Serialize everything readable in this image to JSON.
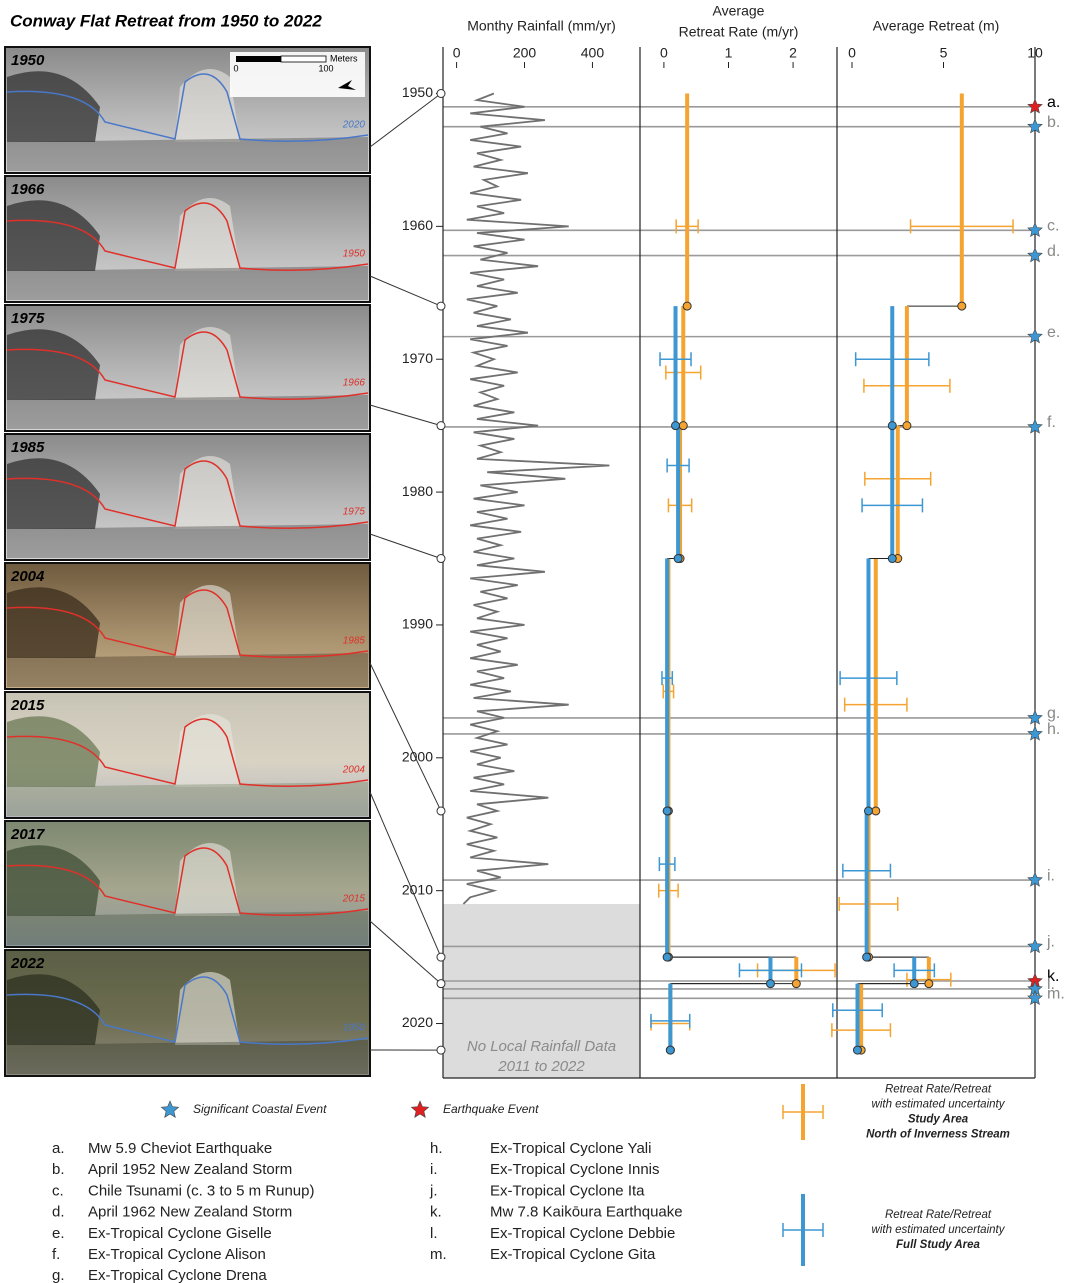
{
  "title": "Conway Flat Retreat from 1950 to 2022",
  "photos": [
    {
      "year": 1950,
      "shoreline_label": "2020",
      "shoreline_color": "#4a78c8",
      "tone": "gray"
    },
    {
      "year": 1966,
      "shoreline_label": "1950",
      "shoreline_color": "#e0302a",
      "tone": "gray"
    },
    {
      "year": 1975,
      "shoreline_label": "1966",
      "shoreline_color": "#e0302a",
      "tone": "gray"
    },
    {
      "year": 1985,
      "shoreline_label": "1975",
      "shoreline_color": "#e0302a",
      "tone": "gray"
    },
    {
      "year": 2004,
      "shoreline_label": "1985",
      "shoreline_color": "#e0302a",
      "tone": "brown"
    },
    {
      "year": 2015,
      "shoreline_label": "2004",
      "shoreline_color": "#e0302a",
      "tone": "light"
    },
    {
      "year": 2017,
      "shoreline_label": "2015",
      "shoreline_color": "#e0302a",
      "tone": "green"
    },
    {
      "year": 2022,
      "shoreline_label": "1950",
      "shoreline_color": "#4a78c8",
      "tone": "dark"
    }
  ],
  "scale_bar": {
    "label": "Meters",
    "ticks": [
      0,
      100
    ]
  },
  "chart_data": [
    {
      "type": "line",
      "xlabel": [
        "Monthy Rainfall (mm/yr)"
      ],
      "color": "#707070",
      "xlim": [
        -40,
        540
      ],
      "xticks": [
        0,
        200,
        400
      ],
      "ylim": [
        1946.5,
        2024.1
      ],
      "yticks": [
        1950,
        1960,
        1970,
        1980,
        1990,
        2000,
        2010,
        2020
      ],
      "inverted": true,
      "years": [
        1950,
        1950.5,
        1951,
        1951.5,
        1952,
        1952.5,
        1953,
        1953.5,
        1954,
        1954.5,
        1955,
        1955.5,
        1956,
        1956.5,
        1957,
        1957.5,
        1958,
        1958.5,
        1959,
        1959.5,
        1960,
        1960.5,
        1961,
        1961.5,
        1962,
        1962.5,
        1963,
        1963.5,
        1964,
        1964.5,
        1965,
        1965.5,
        1966,
        1966.5,
        1967,
        1967.5,
        1968,
        1968.5,
        1969,
        1969.5,
        1970,
        1970.5,
        1971,
        1971.5,
        1972,
        1972.5,
        1973,
        1973.5,
        1974,
        1974.5,
        1975,
        1975.5,
        1976,
        1976.5,
        1977,
        1977.5,
        1978,
        1978.5,
        1979,
        1979.5,
        1980,
        1980.5,
        1981,
        1981.5,
        1982,
        1982.5,
        1983,
        1983.5,
        1984,
        1984.5,
        1985,
        1985.5,
        1986,
        1986.5,
        1987,
        1987.5,
        1988,
        1988.5,
        1989,
        1989.5,
        1990,
        1990.5,
        1991,
        1991.5,
        1992,
        1992.5,
        1993,
        1993.5,
        1994,
        1994.5,
        1995,
        1995.5,
        1996,
        1996.5,
        1997,
        1997.5,
        1998,
        1998.5,
        1999,
        1999.5,
        2000,
        2000.5,
        2001,
        2001.5,
        2002,
        2002.5,
        2003,
        2003.5,
        2004,
        2004.5,
        2005,
        2005.5,
        2006,
        2006.5,
        2007,
        2007.5,
        2008,
        2008.5,
        2009,
        2009.5,
        2010,
        2010.5,
        2011
      ],
      "values": [
        110,
        60,
        200,
        40,
        260,
        70,
        150,
        40,
        190,
        60,
        130,
        50,
        210,
        80,
        120,
        40,
        190,
        60,
        140,
        30,
        330,
        60,
        200,
        50,
        150,
        70,
        240,
        40,
        140,
        60,
        180,
        30,
        120,
        50,
        160,
        60,
        210,
        40,
        150,
        50,
        110,
        60,
        180,
        40,
        140,
        70,
        120,
        50,
        170,
        60,
        240,
        50,
        170,
        70,
        130,
        60,
        450,
        90,
        320,
        70,
        180,
        50,
        200,
        60,
        150,
        40,
        190,
        60,
        130,
        50,
        170,
        60,
        260,
        40,
        180,
        70,
        150,
        50,
        120,
        60,
        200,
        40,
        150,
        60,
        130,
        40,
        180,
        60,
        140,
        40,
        160,
        50,
        330,
        60,
        140,
        40,
        120,
        60,
        150,
        40,
        130,
        60,
        170,
        50,
        140,
        40,
        270,
        60,
        120,
        30,
        100,
        40,
        120,
        30,
        110,
        40,
        270,
        60,
        130,
        30,
        110,
        40,
        20
      ],
      "no_data": {
        "start": 2011,
        "text": [
          "No Local Rainfall Data",
          "2011 to 2022"
        ]
      }
    },
    {
      "type": "step",
      "xlabel": [
        "Average",
        "Retreat Rate (m/yr)"
      ],
      "xlim": [
        -0.37,
        2.68
      ],
      "xticks": [
        0,
        1,
        2
      ],
      "ylim": [
        1946.5,
        2024.1
      ],
      "inverted": true,
      "series": [
        {
          "color": "#f5a431",
          "starts": [
            1950,
            1966,
            1975,
            1985,
            2004,
            2015,
            2017
          ],
          "ends": [
            1966,
            1975,
            1985,
            2004,
            2015,
            2017,
            2022
          ],
          "values": [
            0.36,
            0.3,
            0.25,
            0.07,
            0.07,
            2.05,
            0.1
          ],
          "err_at": [
            1960,
            1971,
            1981,
            1995,
            2010,
            2016,
            2020
          ],
          "errors": [
            0.17,
            0.27,
            0.18,
            0.08,
            0.15,
            0.6,
            0.3
          ]
        },
        {
          "color": "#3d97d3",
          "starts": [
            1966,
            1975,
            1985,
            2004,
            2015,
            2017
          ],
          "ends": [
            1975,
            1985,
            2004,
            2015,
            2017,
            2022
          ],
          "values": [
            0.18,
            0.22,
            0.05,
            0.05,
            1.65,
            0.1
          ],
          "err_at": [
            1970,
            1978,
            1994,
            2008,
            2016,
            2019.8
          ],
          "errors": [
            0.24,
            0.17,
            0.08,
            0.12,
            0.48,
            0.3
          ]
        }
      ]
    },
    {
      "type": "step",
      "xlabel": [
        "Average Retreat (m)"
      ],
      "xlim": [
        -0.82,
        10
      ],
      "xticks": [
        0,
        5,
        10
      ],
      "ylim": [
        1946.5,
        2024.1
      ],
      "inverted": true,
      "series": [
        {
          "color": "#f5a431",
          "starts": [
            1950,
            1966,
            1975,
            1985,
            2004,
            2015,
            2017
          ],
          "ends": [
            1966,
            1975,
            1985,
            2004,
            2015,
            2017,
            2022
          ],
          "values": [
            6.0,
            3.0,
            2.5,
            1.3,
            0.9,
            4.2,
            0.5
          ],
          "err_at": [
            1960,
            1972,
            1979,
            1996,
            2011,
            2016.7,
            2020.5
          ],
          "errors": [
            2.8,
            2.35,
            1.8,
            1.7,
            1.6,
            1.2,
            1.6
          ]
        },
        {
          "color": "#3d97d3",
          "starts": [
            1966,
            1975,
            1985,
            2004,
            2015,
            2017
          ],
          "ends": [
            1975,
            1985,
            2004,
            2015,
            2017,
            2022
          ],
          "values": [
            2.2,
            2.2,
            0.9,
            0.8,
            3.4,
            0.3
          ],
          "err_at": [
            1970,
            1981,
            1994,
            2008.5,
            2016,
            2019
          ],
          "errors": [
            2.0,
            1.65,
            1.55,
            1.3,
            1.1,
            1.35
          ]
        }
      ]
    }
  ],
  "event_types": [
    {
      "kind": "coastal",
      "label": "Significant Coastal Event",
      "color": "#3d97d3"
    },
    {
      "kind": "earthquake",
      "label": "Earthquake Event",
      "color": "#e02020"
    }
  ],
  "events": [
    {
      "letter": "a.",
      "year": 1951.0,
      "kind": "earthquake",
      "description": "Mw 5.9 Cheviot Earthquake"
    },
    {
      "letter": "b.",
      "year": 1952.5,
      "kind": "coastal",
      "description": "April 1952 New Zealand Storm"
    },
    {
      "letter": "c.",
      "year": 1960.3,
      "kind": "coastal",
      "description": "Chile Tsunami (c. 3 to 5 m Runup)"
    },
    {
      "letter": "d.",
      "year": 1962.2,
      "kind": "coastal",
      "description": "April 1962 New Zealand Storm"
    },
    {
      "letter": "e.",
      "year": 1968.3,
      "kind": "coastal",
      "description": "Ex-Tropical Cyclone Giselle"
    },
    {
      "letter": "f.",
      "year": 1975.1,
      "kind": "coastal",
      "description": "Ex-Tropical Cyclone Alison"
    },
    {
      "letter": "g.",
      "year": 1997.0,
      "kind": "coastal",
      "description": "Ex-Tropical Cyclone Drena"
    },
    {
      "letter": "h.",
      "year": 1998.2,
      "kind": "coastal",
      "description": "Ex-Tropical Cyclone Yali"
    },
    {
      "letter": "i.",
      "year": 2009.2,
      "kind": "coastal",
      "description": "Ex-Tropical Cyclone Innis"
    },
    {
      "letter": "j.",
      "year": 2014.2,
      "kind": "coastal",
      "description": "Ex-Tropical Cyclone Ita"
    },
    {
      "letter": "k.",
      "year": 2016.8,
      "kind": "earthquake",
      "description": "Mw 7.8 Kaikōura Earthquake"
    },
    {
      "letter": "l.",
      "year": 2017.4,
      "kind": "coastal",
      "description": "Ex-Tropical Cyclone Debbie"
    },
    {
      "letter": "m.",
      "year": 2018.1,
      "kind": "coastal",
      "description": "Ex-Tropical Cyclone Gita"
    }
  ],
  "legend": [
    {
      "color": "#f5a431",
      "lines": [
        "Retreat Rate/Retreat",
        "with estimated uncertainty"
      ],
      "name_lines": [
        "Study Area",
        "North of Inverness Stream"
      ]
    },
    {
      "color": "#3d97d3",
      "lines": [
        "Retreat Rate/Retreat",
        "with estimated uncertainty"
      ],
      "name_lines": [
        "Full Study Area"
      ]
    }
  ]
}
